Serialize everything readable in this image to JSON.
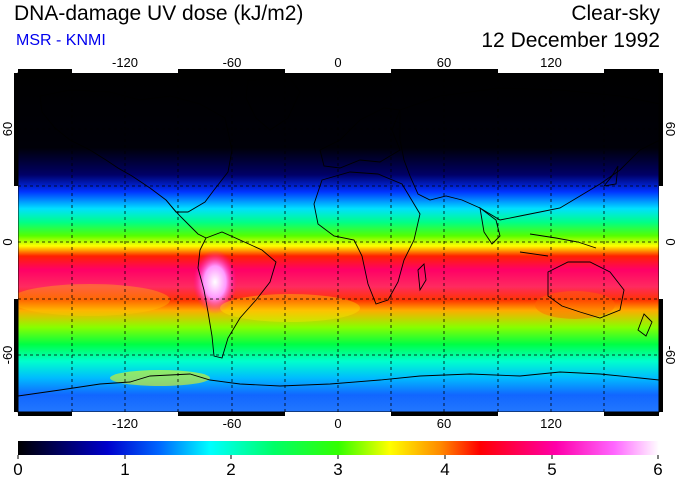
{
  "header": {
    "title": "DNA-damage UV dose (kJ/m2)",
    "source": "MSR - KNMI",
    "condition": "Clear-sky",
    "date": "12 December 1992"
  },
  "colors": {
    "source_label": "#0000ee",
    "frame": "#000000",
    "grid": "#000000"
  },
  "map": {
    "projection": "equirectangular",
    "lon_range": [
      -180,
      180
    ],
    "lat_range": [
      -90,
      90
    ],
    "lon_ticks": [
      "-120",
      "-60",
      "0",
      "60",
      "120"
    ],
    "lat_ticks": [
      "60",
      "0",
      "-60"
    ],
    "gridlines": "dashed every 30 degrees"
  },
  "colorbar": {
    "range": [
      0,
      6
    ],
    "tick_labels": [
      "0",
      "1",
      "2",
      "3",
      "4",
      "5",
      "6"
    ],
    "stops": [
      "#000000",
      "#0000cc",
      "#00ffff",
      "#00ff00",
      "#ffff00",
      "#ff0000",
      "#ff00ff",
      "#ffffff"
    ]
  }
}
